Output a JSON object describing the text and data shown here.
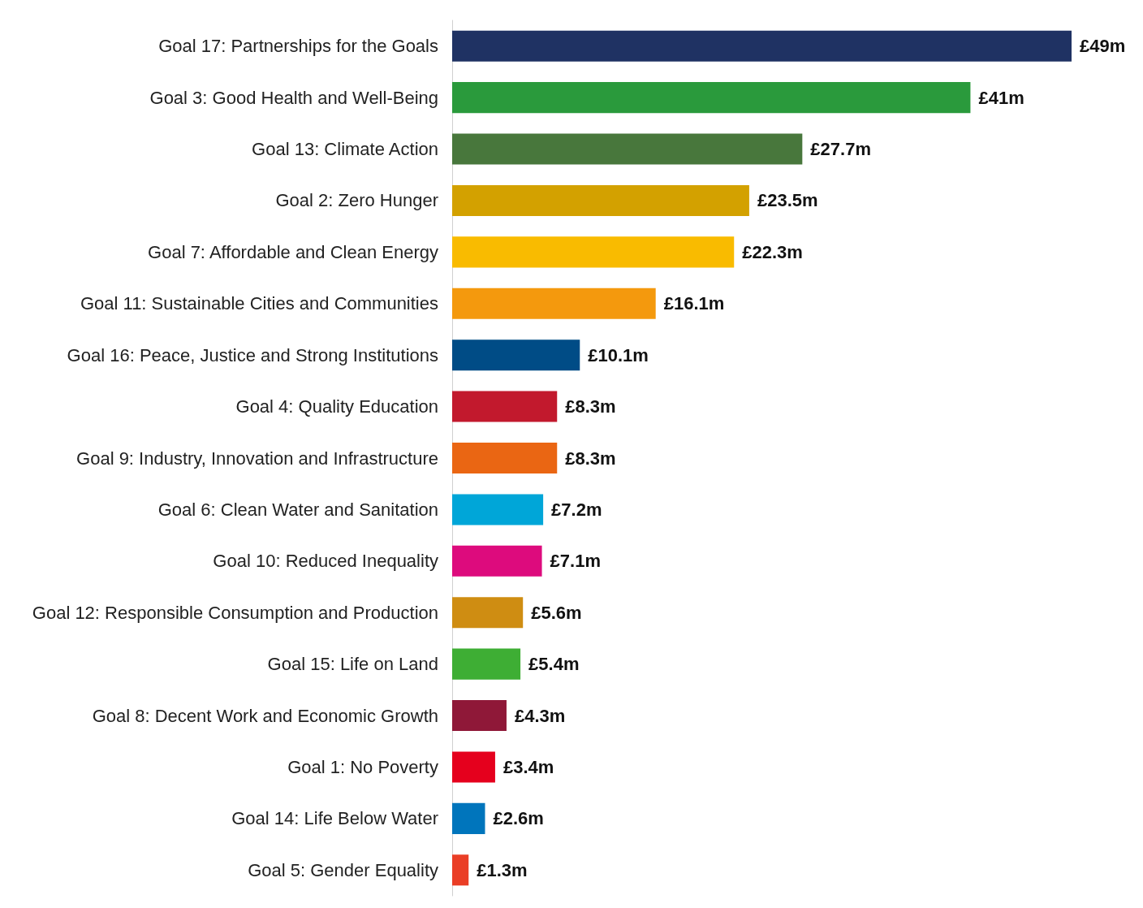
{
  "chart_data": {
    "type": "bar",
    "orientation": "horizontal",
    "categories": [
      "Goal 17: Partnerships for the Goals",
      "Goal 3: Good Health and Well-Being",
      "Goal 13: Climate Action",
      "Goal 2: Zero Hunger",
      "Goal 7: Affordable and Clean Energy",
      "Goal 11: Sustainable Cities and Communities",
      "Goal 16: Peace, Justice and Strong Institutions",
      "Goal 4: Quality Education",
      "Goal 9: Industry, Innovation and Infrastructure",
      "Goal 6: Clean Water and Sanitation",
      "Goal 10: Reduced Inequality",
      "Goal 12: Responsible Consumption and Production",
      "Goal 15: Life on Land",
      "Goal 8: Decent Work and Economic Growth",
      "Goal 1: No Poverty",
      "Goal 14: Life Below Water",
      "Goal 5: Gender Equality"
    ],
    "values": [
      49,
      41,
      27.7,
      23.5,
      22.3,
      16.1,
      10.1,
      8.3,
      8.3,
      7.2,
      7.1,
      5.6,
      5.4,
      4.3,
      3.4,
      2.6,
      1.3
    ],
    "value_labels": [
      "£49m",
      "£41m",
      "£27.7m",
      "£23.5m",
      "£22.3m",
      "£16.1m",
      "£10.1m",
      "£8.3m",
      "£8.3m",
      "£7.2m",
      "£7.1m",
      "£5.6m",
      "£5.4m",
      "£4.3m",
      "£3.4m",
      "£2.6m",
      "£1.3m"
    ],
    "colors": [
      "#1f3263",
      "#2a9a3c",
      "#48773c",
      "#d3a100",
      "#f9bb00",
      "#f4990d",
      "#004c86",
      "#c2192d",
      "#ea6613",
      "#00a6d8",
      "#dd0b7d",
      "#cf8d12",
      "#3eae34",
      "#8f1838",
      "#e5001d",
      "#0075bc",
      "#ea3e26"
    ]
  }
}
